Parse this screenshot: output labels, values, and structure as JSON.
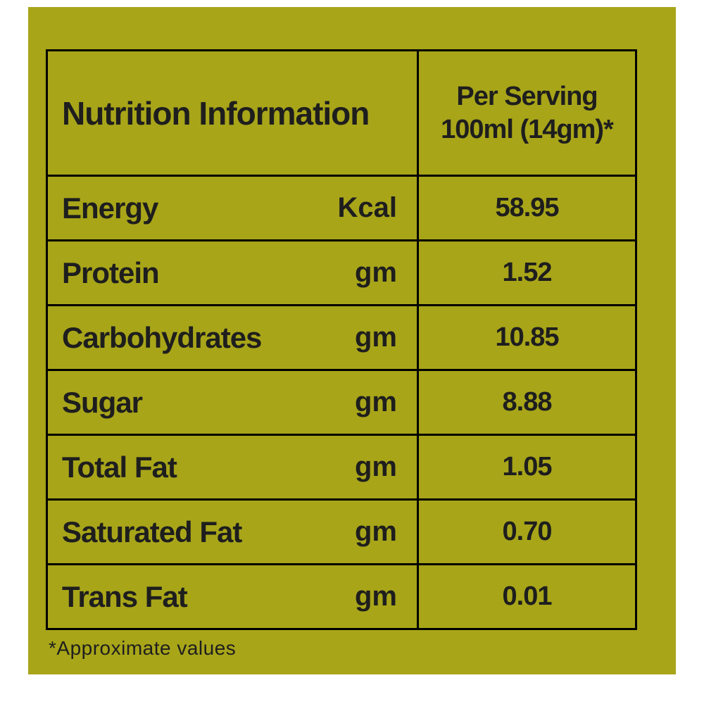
{
  "colors": {
    "page_bg": "#ffffff",
    "panel_bg": "#a8a519",
    "text": "#1e1e1e",
    "line": "#000000"
  },
  "table": {
    "header": {
      "title": "Nutrition Information",
      "serving_line1": "Per Serving",
      "serving_line2": "100ml (14gm)*"
    },
    "rows": [
      {
        "name": "Energy",
        "unit": "Kcal",
        "value": "58.95"
      },
      {
        "name": "Protein",
        "unit": "gm",
        "value": "1.52"
      },
      {
        "name": "Carbohydrates",
        "unit": "gm",
        "value": "10.85"
      },
      {
        "name": "Sugar",
        "unit": "gm",
        "value": "8.88"
      },
      {
        "name": "Total Fat",
        "unit": "gm",
        "value": "1.05"
      },
      {
        "name": "Saturated Fat",
        "unit": "gm",
        "value": "0.70"
      },
      {
        "name": "Trans Fat",
        "unit": "gm",
        "value": "0.01"
      }
    ],
    "footnote": "*Approximate values"
  }
}
